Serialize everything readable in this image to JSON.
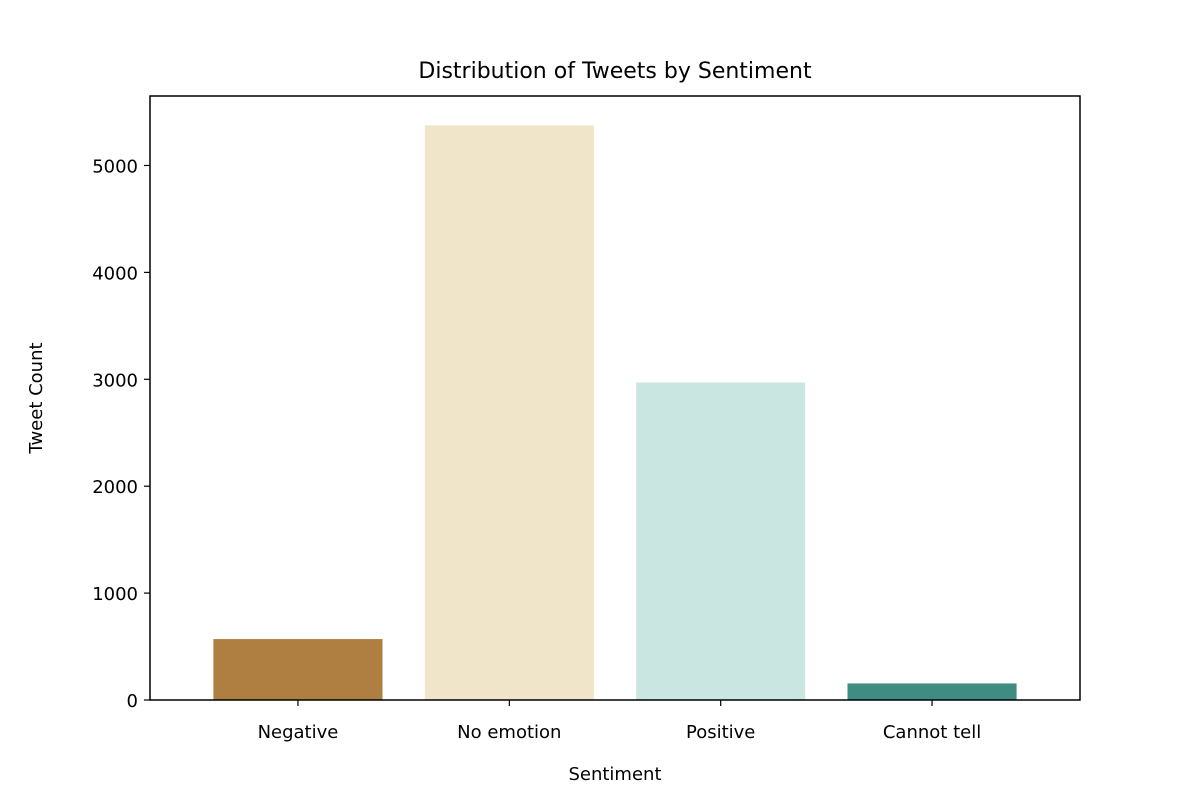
{
  "chart_data": {
    "type": "bar",
    "title": "Distribution of Tweets by Sentiment",
    "xlabel": "Sentiment",
    "ylabel": "Tweet Count",
    "categories": [
      "Negative",
      "No emotion",
      "Positive",
      "Cannot tell"
    ],
    "values": [
      570,
      5375,
      2970,
      155
    ],
    "colors": [
      "#ae7f40",
      "#f0e5c8",
      "#cae6e1",
      "#3f8c82"
    ],
    "ylim": [
      0,
      5650
    ],
    "yticks": [
      0,
      1000,
      2000,
      3000,
      4000,
      5000
    ],
    "ytick_labels": [
      "0",
      "1000",
      "2000",
      "3000",
      "4000",
      "5000"
    ],
    "grid": false,
    "legend": "none"
  }
}
